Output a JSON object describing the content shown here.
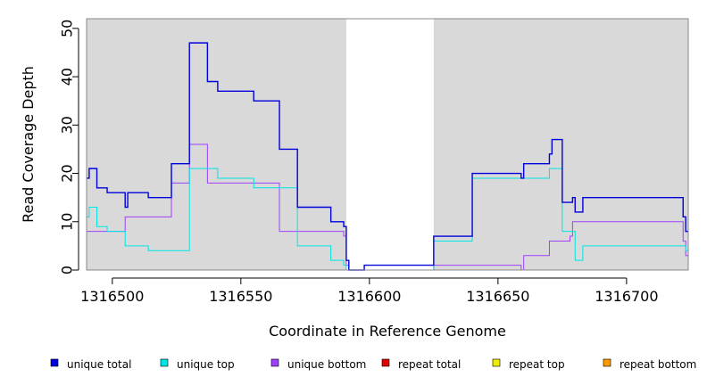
{
  "chart_data": {
    "type": "line",
    "title": "",
    "xlabel": "Coordinate in Reference Genome",
    "ylabel": "Read Coverage Depth",
    "xlim": [
      1316490,
      1316724
    ],
    "ylim": [
      0,
      52
    ],
    "xticks": [
      1316500,
      1316550,
      1316600,
      1316650,
      1316700
    ],
    "xtick_labels": [
      "1316500",
      "1316550",
      "1316600",
      "1316650",
      "1316700"
    ],
    "yticks": [
      0,
      10,
      20,
      30,
      40,
      50
    ],
    "ytick_labels": [
      "0",
      "10",
      "20",
      "30",
      "40",
      "50"
    ],
    "shaded_regions": [
      [
        1316490,
        1316591
      ],
      [
        1316625,
        1316724
      ]
    ],
    "legend_position": "bottom",
    "series": [
      {
        "name": "unique total",
        "color": "#0000dd",
        "points": [
          [
            1316490,
            19
          ],
          [
            1316491,
            21
          ],
          [
            1316494,
            17
          ],
          [
            1316498,
            16
          ],
          [
            1316505,
            13
          ],
          [
            1316506,
            16
          ],
          [
            1316514,
            15
          ],
          [
            1316523,
            22
          ],
          [
            1316530,
            47
          ],
          [
            1316537,
            39
          ],
          [
            1316541,
            37
          ],
          [
            1316555,
            35
          ],
          [
            1316565,
            25
          ],
          [
            1316572,
            13
          ],
          [
            1316585,
            10
          ],
          [
            1316590,
            9
          ],
          [
            1316591,
            2
          ],
          [
            1316592,
            0
          ],
          [
            1316598,
            1
          ],
          [
            1316625,
            7
          ],
          [
            1316640,
            20
          ],
          [
            1316659,
            19
          ],
          [
            1316660,
            22
          ],
          [
            1316670,
            24
          ],
          [
            1316671,
            27
          ],
          [
            1316675,
            14
          ],
          [
            1316679,
            15
          ],
          [
            1316680,
            12
          ],
          [
            1316683,
            15
          ],
          [
            1316722,
            11
          ],
          [
            1316723,
            8
          ],
          [
            1316724,
            8
          ]
        ]
      },
      {
        "name": "unique top",
        "color": "#00e5e5",
        "points": [
          [
            1316490,
            11
          ],
          [
            1316491,
            13
          ],
          [
            1316494,
            9
          ],
          [
            1316498,
            8
          ],
          [
            1316505,
            5
          ],
          [
            1316514,
            4
          ],
          [
            1316530,
            21
          ],
          [
            1316541,
            19
          ],
          [
            1316555,
            17
          ],
          [
            1316572,
            5
          ],
          [
            1316585,
            2
          ],
          [
            1316590,
            1
          ],
          [
            1316591,
            0
          ],
          [
            1316598,
            0
          ],
          [
            1316625,
            6
          ],
          [
            1316640,
            19
          ],
          [
            1316660,
            19
          ],
          [
            1316670,
            21
          ],
          [
            1316675,
            8
          ],
          [
            1316680,
            2
          ],
          [
            1316683,
            5
          ],
          [
            1316723,
            4
          ],
          [
            1316724,
            4
          ]
        ]
      },
      {
        "name": "unique bottom",
        "color": "#a040ff",
        "points": [
          [
            1316490,
            8
          ],
          [
            1316505,
            11
          ],
          [
            1316523,
            18
          ],
          [
            1316530,
            26
          ],
          [
            1316537,
            18
          ],
          [
            1316565,
            8
          ],
          [
            1316590,
            7
          ],
          [
            1316591,
            1
          ],
          [
            1316592,
            0
          ],
          [
            1316625,
            1
          ],
          [
            1316659,
            0
          ],
          [
            1316660,
            3
          ],
          [
            1316670,
            6
          ],
          [
            1316678,
            7
          ],
          [
            1316679,
            10
          ],
          [
            1316722,
            6
          ],
          [
            1316723,
            3
          ],
          [
            1316724,
            3
          ]
        ]
      },
      {
        "name": "repeat total",
        "color": "#e00000",
        "points": [
          [
            1316490,
            0
          ],
          [
            1316724,
            0
          ]
        ]
      },
      {
        "name": "repeat top",
        "color": "#eeee00",
        "points": [
          [
            1316490,
            0
          ],
          [
            1316724,
            0
          ]
        ]
      },
      {
        "name": "repeat bottom",
        "color": "#ff9900",
        "points": [
          [
            1316490,
            0
          ],
          [
            1316724,
            0
          ]
        ]
      }
    ]
  }
}
